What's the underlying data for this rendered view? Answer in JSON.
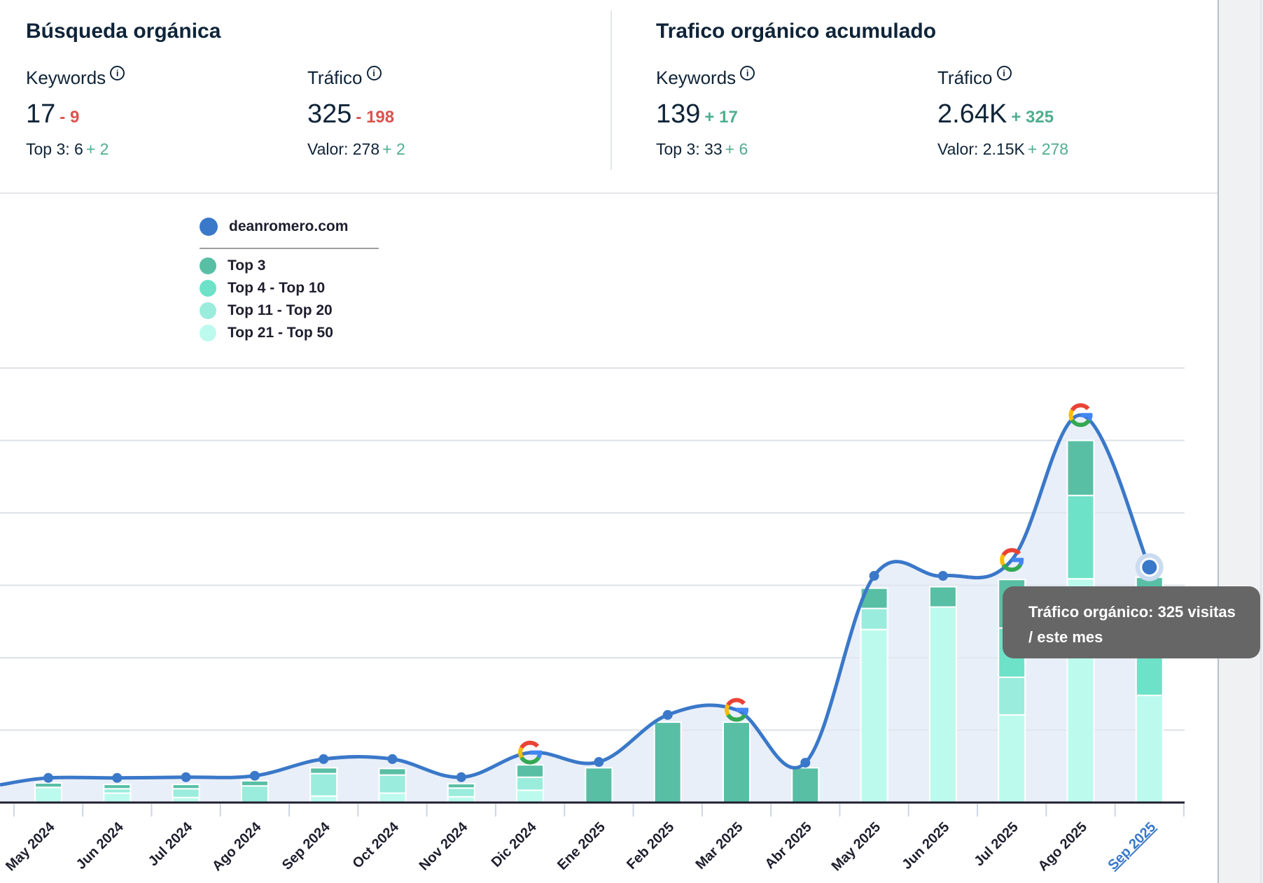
{
  "organic_search": {
    "title": "Búsqueda orgánica",
    "keywords": {
      "label": "Keywords",
      "value": "17",
      "delta": "- 9",
      "sub_label": "Top 3: 6",
      "sub_delta": "+ 2"
    },
    "traffic": {
      "label": "Tráfico",
      "value": "325",
      "delta": "- 198",
      "sub_label": "Valor: 278",
      "sub_delta": "+ 2"
    }
  },
  "accumulated_traffic": {
    "title": "Trafico orgánico acumulado",
    "keywords": {
      "label": "Keywords",
      "value": "139",
      "delta": "+ 17",
      "sub_label": "Top 3: 33",
      "sub_delta": "+ 6"
    },
    "traffic": {
      "label": "Tráfico",
      "value": "2.64K",
      "delta": "+ 325",
      "sub_label": "Valor: 2.15K",
      "sub_delta": "+ 278"
    }
  },
  "info_icon_glyph": "i",
  "colors": {
    "line": "#3a78c9",
    "area": "#e9eff8",
    "top3": "#58bfa5",
    "top4_10": "#6de2c8",
    "top11_20": "#9aecdc",
    "top21_50": "#bdfaee",
    "negative": "#d9534f",
    "positive": "#4fae8c",
    "tooltip_bg": "#666666",
    "highlight_label": "#3a78c9"
  },
  "tooltip": {
    "line1": "Tráfico orgánico: 325 visitas",
    "line2": "/ este mes"
  },
  "chart_data": {
    "type": "bar",
    "title": "",
    "xlabel": "",
    "ylabel": "",
    "ylim": [
      0,
      600
    ],
    "grid": true,
    "legend_position": "top-left",
    "legend": {
      "line_series": "deanromero.com",
      "bar_series": [
        "Top 3",
        "Top 4 - Top 10",
        "Top 11 - Top 20",
        "Top 21 - Top 50"
      ]
    },
    "categories": [
      "May 2024",
      "Jun 2024",
      "Jul 2024",
      "Ago 2024",
      "Sep 2024",
      "Oct 2024",
      "Nov 2024",
      "Dic 2024",
      "Ene 2025",
      "Feb 2025",
      "Mar 2025",
      "Abr 2025",
      "May 2025",
      "Jun 2025",
      "Jul 2025",
      "Ago 2025",
      "Sep 2025"
    ],
    "highlighted_category": "Sep 2025",
    "series": [
      {
        "name": "Top 3",
        "kind": "stacked-bar",
        "values": [
          6,
          6,
          6,
          7,
          8,
          9,
          6,
          17,
          48,
          111,
          111,
          48,
          28,
          28,
          67,
          76,
          43
        ]
      },
      {
        "name": "Top 4 - Top 10",
        "kind": "stacked-bar",
        "values": [
          0,
          0,
          0,
          0,
          0,
          0,
          0,
          0,
          0,
          0,
          0,
          0,
          0,
          0,
          68,
          115,
          120
        ]
      },
      {
        "name": "Top 11 - Top 20",
        "kind": "stacked-bar",
        "values": [
          0,
          6,
          12,
          23,
          31,
          25,
          12,
          18,
          0,
          0,
          0,
          0,
          29,
          0,
          52,
          0,
          0
        ]
      },
      {
        "name": "Top 21 - Top 50",
        "kind": "stacked-bar",
        "values": [
          21,
          13,
          7,
          0,
          9,
          13,
          8,
          17,
          0,
          0,
          0,
          0,
          239,
          270,
          121,
          309,
          148
        ]
      },
      {
        "name": "deanromero.com",
        "kind": "line",
        "values": [
          34,
          34,
          35,
          37,
          60,
          60,
          35,
          69,
          56,
          121,
          128,
          55,
          313,
          313,
          335,
          535,
          325
        ]
      }
    ],
    "google_update_markers": [
      "Dic 2024",
      "Mar 2025",
      "Jul 2025",
      "Ago 2025"
    ]
  }
}
